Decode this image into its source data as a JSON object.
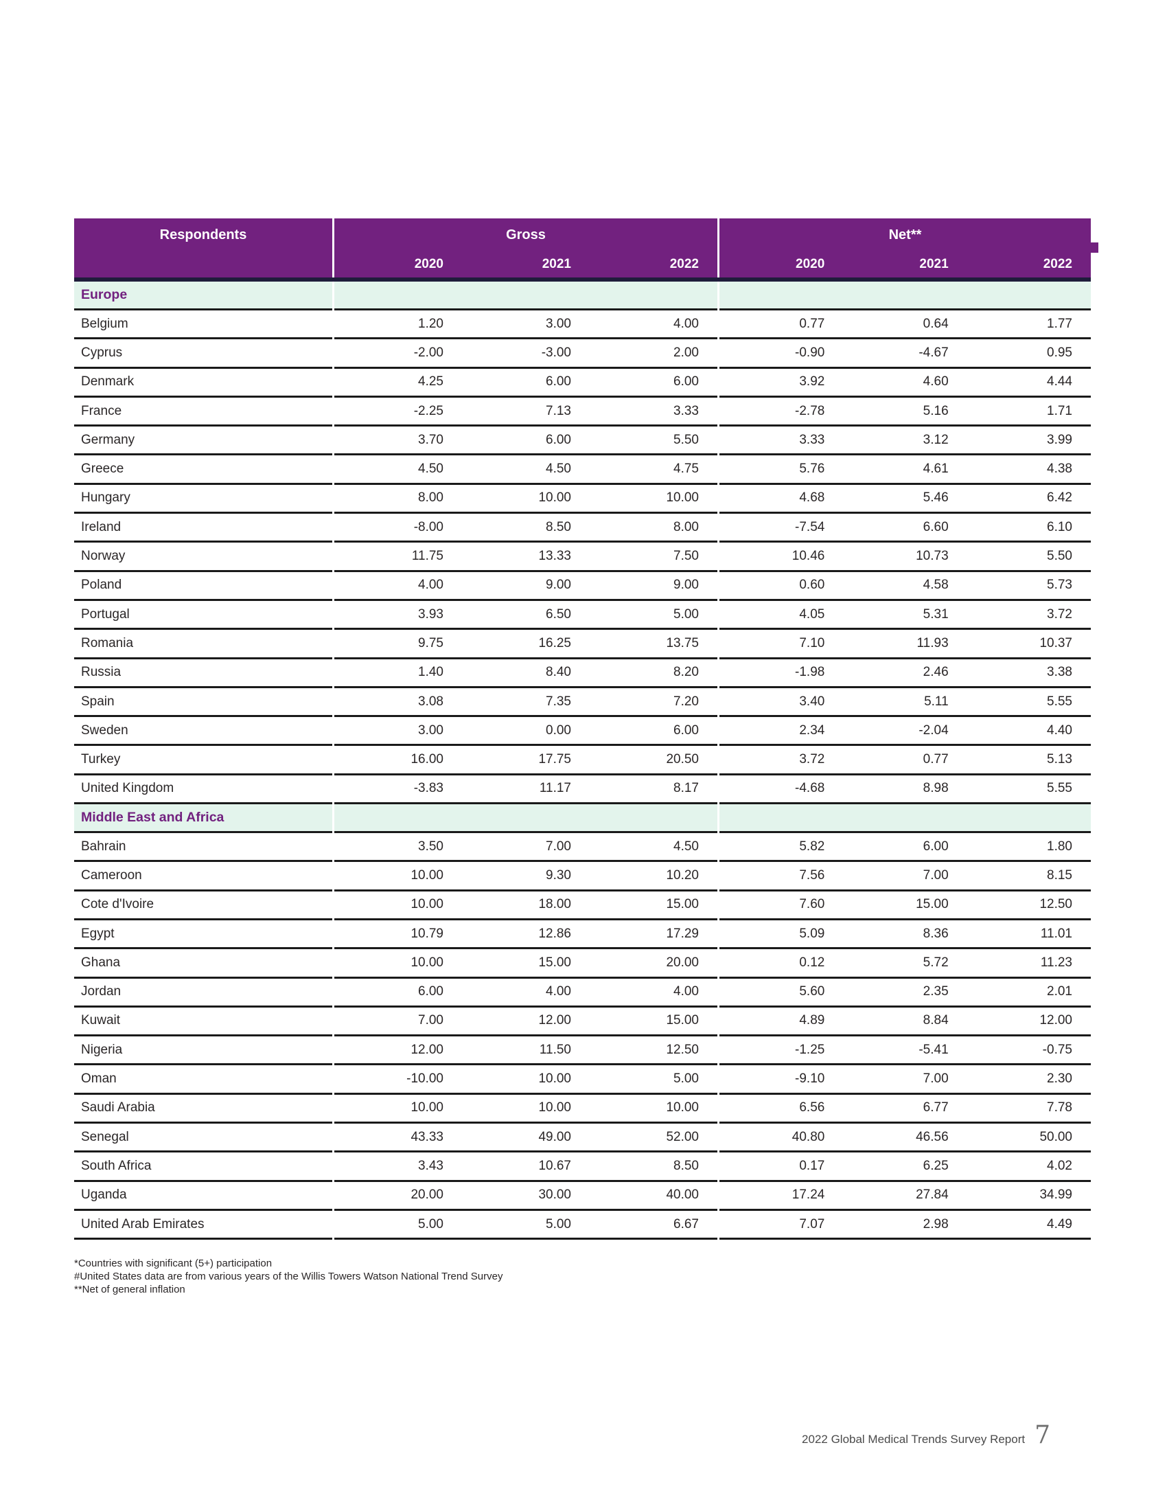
{
  "table": {
    "col_headers": {
      "respondents": "Respondents",
      "gross": "Gross",
      "net": "Net**",
      "years": [
        "2020",
        "2021",
        "2022"
      ]
    },
    "sections": [
      {
        "label": "Europe",
        "rows": [
          {
            "country": "Belgium",
            "gross": [
              "1.20",
              "3.00",
              "4.00"
            ],
            "net": [
              "0.77",
              "0.64",
              "1.77"
            ]
          },
          {
            "country": "Cyprus",
            "gross": [
              "-2.00",
              "-3.00",
              "2.00"
            ],
            "net": [
              "-0.90",
              "-4.67",
              "0.95"
            ]
          },
          {
            "country": "Denmark",
            "gross": [
              "4.25",
              "6.00",
              "6.00"
            ],
            "net": [
              "3.92",
              "4.60",
              "4.44"
            ]
          },
          {
            "country": "France",
            "gross": [
              "-2.25",
              "7.13",
              "3.33"
            ],
            "net": [
              "-2.78",
              "5.16",
              "1.71"
            ]
          },
          {
            "country": "Germany",
            "gross": [
              "3.70",
              "6.00",
              "5.50"
            ],
            "net": [
              "3.33",
              "3.12",
              "3.99"
            ]
          },
          {
            "country": "Greece",
            "gross": [
              "4.50",
              "4.50",
              "4.75"
            ],
            "net": [
              "5.76",
              "4.61",
              "4.38"
            ]
          },
          {
            "country": "Hungary",
            "gross": [
              "8.00",
              "10.00",
              "10.00"
            ],
            "net": [
              "4.68",
              "5.46",
              "6.42"
            ]
          },
          {
            "country": "Ireland",
            "gross": [
              "-8.00",
              "8.50",
              "8.00"
            ],
            "net": [
              "-7.54",
              "6.60",
              "6.10"
            ]
          },
          {
            "country": "Norway",
            "gross": [
              "11.75",
              "13.33",
              "7.50"
            ],
            "net": [
              "10.46",
              "10.73",
              "5.50"
            ]
          },
          {
            "country": "Poland",
            "gross": [
              "4.00",
              "9.00",
              "9.00"
            ],
            "net": [
              "0.60",
              "4.58",
              "5.73"
            ]
          },
          {
            "country": "Portugal",
            "gross": [
              "3.93",
              "6.50",
              "5.00"
            ],
            "net": [
              "4.05",
              "5.31",
              "3.72"
            ]
          },
          {
            "country": "Romania",
            "gross": [
              "9.75",
              "16.25",
              "13.75"
            ],
            "net": [
              "7.10",
              "11.93",
              "10.37"
            ]
          },
          {
            "country": "Russia",
            "gross": [
              "1.40",
              "8.40",
              "8.20"
            ],
            "net": [
              "-1.98",
              "2.46",
              "3.38"
            ]
          },
          {
            "country": "Spain",
            "gross": [
              "3.08",
              "7.35",
              "7.20"
            ],
            "net": [
              "3.40",
              "5.11",
              "5.55"
            ]
          },
          {
            "country": "Sweden",
            "gross": [
              "3.00",
              "0.00",
              "6.00"
            ],
            "net": [
              "2.34",
              "-2.04",
              "4.40"
            ]
          },
          {
            "country": "Turkey",
            "gross": [
              "16.00",
              "17.75",
              "20.50"
            ],
            "net": [
              "3.72",
              "0.77",
              "5.13"
            ]
          },
          {
            "country": "United Kingdom",
            "gross": [
              "-3.83",
              "11.17",
              "8.17"
            ],
            "net": [
              "-4.68",
              "8.98",
              "5.55"
            ]
          }
        ]
      },
      {
        "label": "Middle East and Africa",
        "rows": [
          {
            "country": "Bahrain",
            "gross": [
              "3.50",
              "7.00",
              "4.50"
            ],
            "net": [
              "5.82",
              "6.00",
              "1.80"
            ]
          },
          {
            "country": "Cameroon",
            "gross": [
              "10.00",
              "9.30",
              "10.20"
            ],
            "net": [
              "7.56",
              "7.00",
              "8.15"
            ]
          },
          {
            "country": "Cote d'Ivoire",
            "gross": [
              "10.00",
              "18.00",
              "15.00"
            ],
            "net": [
              "7.60",
              "15.00",
              "12.50"
            ]
          },
          {
            "country": "Egypt",
            "gross": [
              "10.79",
              "12.86",
              "17.29"
            ],
            "net": [
              "5.09",
              "8.36",
              "11.01"
            ]
          },
          {
            "country": "Ghana",
            "gross": [
              "10.00",
              "15.00",
              "20.00"
            ],
            "net": [
              "0.12",
              "5.72",
              "11.23"
            ]
          },
          {
            "country": "Jordan",
            "gross": [
              "6.00",
              "4.00",
              "4.00"
            ],
            "net": [
              "5.60",
              "2.35",
              "2.01"
            ]
          },
          {
            "country": "Kuwait",
            "gross": [
              "7.00",
              "12.00",
              "15.00"
            ],
            "net": [
              "4.89",
              "8.84",
              "12.00"
            ]
          },
          {
            "country": "Nigeria",
            "gross": [
              "12.00",
              "11.50",
              "12.50"
            ],
            "net": [
              "-1.25",
              "-5.41",
              "-0.75"
            ]
          },
          {
            "country": "Oman",
            "gross": [
              "-10.00",
              "10.00",
              "5.00"
            ],
            "net": [
              "-9.10",
              "7.00",
              "2.30"
            ]
          },
          {
            "country": "Saudi Arabia",
            "gross": [
              "10.00",
              "10.00",
              "10.00"
            ],
            "net": [
              "6.56",
              "6.77",
              "7.78"
            ]
          },
          {
            "country": "Senegal",
            "gross": [
              "43.33",
              "49.00",
              "52.00"
            ],
            "net": [
              "40.80",
              "46.56",
              "50.00"
            ]
          },
          {
            "country": "South Africa",
            "gross": [
              "3.43",
              "10.67",
              "8.50"
            ],
            "net": [
              "0.17",
              "6.25",
              "4.02"
            ]
          },
          {
            "country": "Uganda",
            "gross": [
              "20.00",
              "30.00",
              "40.00"
            ],
            "net": [
              "17.24",
              "27.84",
              "34.99"
            ]
          },
          {
            "country": "United Arab Emirates",
            "gross": [
              "5.00",
              "5.00",
              "6.67"
            ],
            "net": [
              "7.07",
              "2.98",
              "4.49"
            ]
          }
        ]
      }
    ]
  },
  "footnotes": [
    "*Countries with significant (5+) participation",
    "#United States data are from various years of the Willis Towers Watson National Trend Survey",
    "**Net of general inflation"
  ],
  "footer": {
    "report_title": "2022 Global Medical Trends Survey Report",
    "page_number": "7"
  },
  "colors": {
    "header_purple": "#72217F",
    "section_mint": "#E3F4EC",
    "header_underline_navy": "#1F1C3B",
    "row_divider": "#1a1a1a"
  }
}
